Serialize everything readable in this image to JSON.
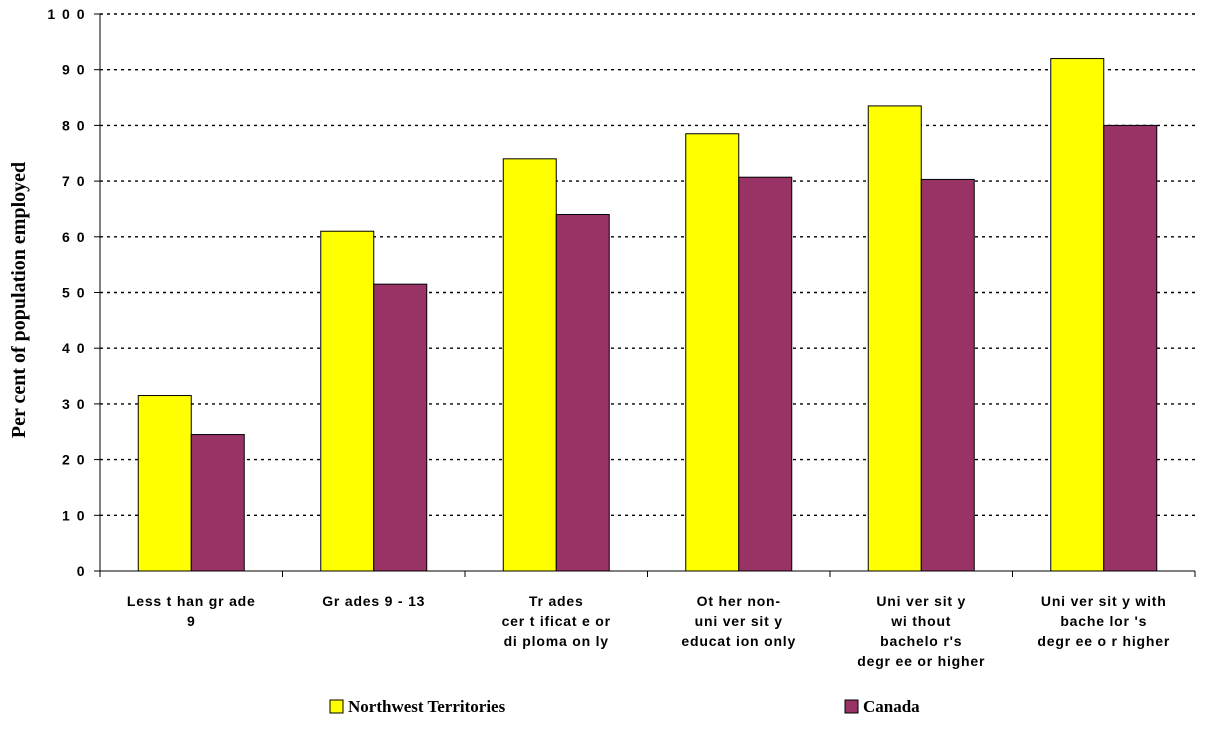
{
  "chart_data": {
    "type": "bar",
    "ylabel": "Per cent of population employed",
    "ylim": [
      0,
      100
    ],
    "yticks": [
      "0",
      "1 0",
      "2 0",
      "3 0",
      "4 0",
      "5 0",
      "6 0",
      "7 0",
      "8 0",
      "9 0",
      "1 0 0"
    ],
    "yticks_values": [
      0,
      10,
      20,
      30,
      40,
      50,
      60,
      70,
      80,
      90,
      100
    ],
    "grid": true,
    "legend_position": "bottom",
    "categories": [
      [
        "Less t han gr ade",
        "9"
      ],
      [
        "Gr ades 9 - 13"
      ],
      [
        "Tr ades",
        "cer t ificat e or",
        "di ploma on ly"
      ],
      [
        "Ot her non-",
        "uni ver sit y",
        "educat ion only"
      ],
      [
        "Uni ver sit y",
        "wi thout",
        "bachelo r's",
        "degr ee or higher"
      ],
      [
        "Uni ver sit y with",
        "bache lor 's",
        "degr ee o r higher"
      ]
    ],
    "series": [
      {
        "name": "Northwest Territories",
        "color": "#ffff00",
        "values": [
          31.5,
          61,
          74,
          78.5,
          83.5,
          92
        ]
      },
      {
        "name": "Canada",
        "color": "#993366",
        "values": [
          24.5,
          51.5,
          64,
          70.7,
          70.3,
          80
        ]
      }
    ]
  }
}
